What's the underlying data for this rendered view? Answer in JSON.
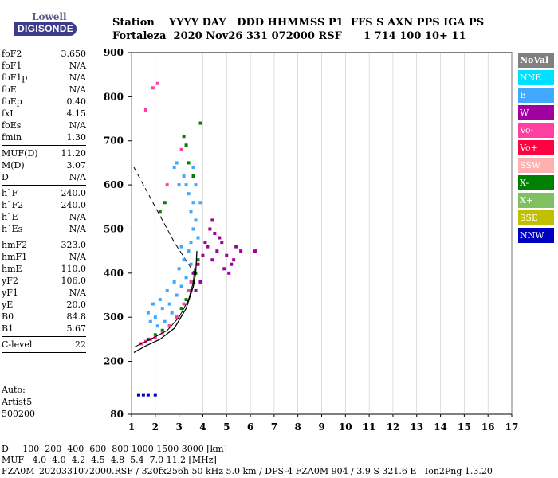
{
  "logo": {
    "top": "Lowell",
    "bottom": "DIGISONDE"
  },
  "header": {
    "line1": "Station    YYYY DAY   DDD HHMMSS P1  FFS S AXN PPS IGA PS",
    "line2": "Fortaleza  2020 Nov26 331 072000 RSF      1 714 100 10+ 11"
  },
  "params": [
    {
      "label": "foF2",
      "value": "3.650"
    },
    {
      "label": "foF1",
      "value": "N/A"
    },
    {
      "label": "foF1p",
      "value": "N/A"
    },
    {
      "label": "foE",
      "value": "N/A"
    },
    {
      "label": "foEp",
      "value": "0.40"
    },
    {
      "label": "fxI",
      "value": "4.15"
    },
    {
      "label": "foEs",
      "value": "N/A"
    },
    {
      "label": "fmin",
      "value": "1.30"
    },
    {
      "sep": true
    },
    {
      "label": "MUF(D)",
      "value": "11.20"
    },
    {
      "label": "M(D)",
      "value": "3.07"
    },
    {
      "label": "D",
      "value": "N/A"
    },
    {
      "sep": true
    },
    {
      "label": "h`F",
      "value": "240.0"
    },
    {
      "label": "h`F2",
      "value": "240.0"
    },
    {
      "label": "h`E",
      "value": "N/A"
    },
    {
      "label": "h`Es",
      "value": "N/A"
    },
    {
      "sep": true
    },
    {
      "label": "hmF2",
      "value": "323.0"
    },
    {
      "label": "hmF1",
      "value": "N/A"
    },
    {
      "label": "hmE",
      "value": "110.0"
    },
    {
      "label": "yF2",
      "value": "106.0"
    },
    {
      "label": "yF1",
      "value": "N/A"
    },
    {
      "label": "yE",
      "value": "20.0"
    },
    {
      "label": "B0",
      "value": "84.8"
    },
    {
      "label": "B1",
      "value": "5.67"
    },
    {
      "sep": true
    },
    {
      "label": "C-level",
      "value": "22"
    },
    {
      "sep": true
    }
  ],
  "extra": {
    "auto": "Auto:",
    "artist": "Artist5",
    "version": "500200"
  },
  "legend": [
    {
      "label": "NoVal",
      "color": "#808080"
    },
    {
      "label": "NNE",
      "color": "#00e0ff"
    },
    {
      "label": "E",
      "color": "#40a8ff"
    },
    {
      "label": "W",
      "color": "#a000a0"
    },
    {
      "label": "Vo-",
      "color": "#ff40a0"
    },
    {
      "label": "Vo+",
      "color": "#ff0040"
    },
    {
      "label": "SSW",
      "color": "#ffb0b0"
    },
    {
      "label": "X-",
      "color": "#008000"
    },
    {
      "label": "X+",
      "color": "#80c060"
    },
    {
      "label": "SSE",
      "color": "#c0c000"
    },
    {
      "label": "NNW",
      "color": "#0000c0"
    }
  ],
  "footer": {
    "line1": "D     100  200  400  600  800 1000 1500 3000 [km]",
    "line2": "MUF   4.0  4.0  4.2  4.5  4.8  5.4  7.0 11.2 [MHz]",
    "line3": "FZA0M_2020331072000.RSF / 320fx256h 50 kHz 5.0 km / DPS-4 FZA0M 904 / 3.9 S 321.6 E   Ion2Png 1.3.20"
  },
  "chart_data": {
    "type": "scatter",
    "title": "",
    "xlabel": "",
    "ylabel": "",
    "xlim": [
      1,
      17
    ],
    "ylim": [
      80,
      900
    ],
    "x_ticks": [
      1,
      2,
      3,
      4,
      5,
      6,
      7,
      8,
      9,
      10,
      11,
      12,
      13,
      14,
      15,
      16,
      17
    ],
    "y_ticks": [
      80,
      200,
      300,
      400,
      500,
      600,
      700,
      800,
      900
    ],
    "grid": "vertical lines at integer frequencies",
    "series": [
      {
        "name": "E",
        "color": "#40a8ff",
        "points": [
          [
            1.7,
            310
          ],
          [
            1.9,
            330
          ],
          [
            2.0,
            300
          ],
          [
            2.2,
            340
          ],
          [
            2.3,
            320
          ],
          [
            2.5,
            360
          ],
          [
            2.6,
            330
          ],
          [
            2.8,
            380
          ],
          [
            2.9,
            350
          ],
          [
            3.0,
            410
          ],
          [
            3.1,
            370
          ],
          [
            3.2,
            430
          ],
          [
            3.3,
            390
          ],
          [
            3.4,
            450
          ],
          [
            3.5,
            470
          ],
          [
            3.6,
            500
          ],
          [
            3.7,
            520
          ],
          [
            3.5,
            540
          ],
          [
            3.6,
            560
          ],
          [
            3.4,
            580
          ],
          [
            3.3,
            600
          ],
          [
            3.2,
            620
          ],
          [
            3.6,
            640
          ],
          [
            3.5,
            420
          ],
          [
            2.4,
            290
          ],
          [
            2.1,
            280
          ],
          [
            1.8,
            290
          ],
          [
            2.7,
            310
          ],
          [
            3.1,
            460
          ],
          [
            3.8,
            480
          ],
          [
            3.0,
            600
          ],
          [
            2.9,
            650
          ],
          [
            2.8,
            640
          ],
          [
            3.9,
            560
          ],
          [
            3.7,
            600
          ]
        ]
      },
      {
        "name": "W",
        "color": "#a000a0",
        "points": [
          [
            3.6,
            400
          ],
          [
            3.8,
            420
          ],
          [
            4.0,
            440
          ],
          [
            4.2,
            460
          ],
          [
            4.4,
            430
          ],
          [
            4.6,
            450
          ],
          [
            4.8,
            470
          ],
          [
            5.0,
            440
          ],
          [
            5.2,
            420
          ],
          [
            5.4,
            460
          ],
          [
            4.3,
            500
          ],
          [
            4.5,
            490
          ],
          [
            4.7,
            480
          ],
          [
            4.9,
            410
          ],
          [
            5.1,
            400
          ],
          [
            3.9,
            380
          ],
          [
            4.1,
            470
          ],
          [
            4.4,
            520
          ],
          [
            5.3,
            430
          ],
          [
            5.6,
            450
          ],
          [
            6.2,
            450
          ],
          [
            3.7,
            360
          ]
        ]
      },
      {
        "name": "X-",
        "color": "#008000",
        "points": [
          [
            1.7,
            250
          ],
          [
            2.0,
            260
          ],
          [
            2.3,
            270
          ],
          [
            2.6,
            280
          ],
          [
            2.9,
            300
          ],
          [
            3.1,
            320
          ],
          [
            3.3,
            340
          ],
          [
            3.5,
            360
          ],
          [
            3.6,
            380
          ],
          [
            3.7,
            400
          ],
          [
            3.8,
            430
          ],
          [
            3.6,
            620
          ],
          [
            3.4,
            650
          ],
          [
            3.3,
            690
          ],
          [
            3.2,
            710
          ],
          [
            3.9,
            740
          ],
          [
            2.4,
            560
          ],
          [
            2.2,
            540
          ]
        ]
      },
      {
        "name": "Vo-",
        "color": "#ff40a0",
        "points": [
          [
            1.4,
            240
          ],
          [
            1.6,
            245
          ],
          [
            1.8,
            250
          ],
          [
            2.0,
            255
          ],
          [
            2.3,
            265
          ],
          [
            2.6,
            280
          ],
          [
            2.9,
            300
          ],
          [
            3.2,
            330
          ],
          [
            3.4,
            360
          ],
          [
            3.5,
            380
          ],
          [
            1.6,
            770
          ],
          [
            1.9,
            820
          ],
          [
            2.1,
            830
          ],
          [
            2.5,
            600
          ],
          [
            3.1,
            680
          ]
        ]
      },
      {
        "name": "NNW",
        "color": "#0000c0",
        "points": [
          [
            1.3,
            124
          ],
          [
            1.5,
            124
          ],
          [
            1.7,
            124
          ],
          [
            2.0,
            124
          ]
        ]
      }
    ],
    "virtual_height_trace": [
      [
        1.1,
        220
      ],
      [
        1.6,
        235
      ],
      [
        2.2,
        250
      ],
      [
        2.8,
        275
      ],
      [
        3.3,
        320
      ],
      [
        3.6,
        370
      ],
      [
        3.7,
        400
      ],
      [
        3.75,
        450
      ]
    ],
    "o_trace": [
      [
        1.1,
        232
      ],
      [
        1.8,
        250
      ],
      [
        2.5,
        270
      ],
      [
        3.0,
        300
      ],
      [
        3.4,
        340
      ],
      [
        3.6,
        380
      ],
      [
        3.65,
        410
      ]
    ],
    "dashed_line": [
      [
        1.1,
        640
      ],
      [
        2.0,
        550
      ],
      [
        2.8,
        470
      ],
      [
        3.4,
        420
      ],
      [
        3.65,
        400
      ]
    ]
  }
}
